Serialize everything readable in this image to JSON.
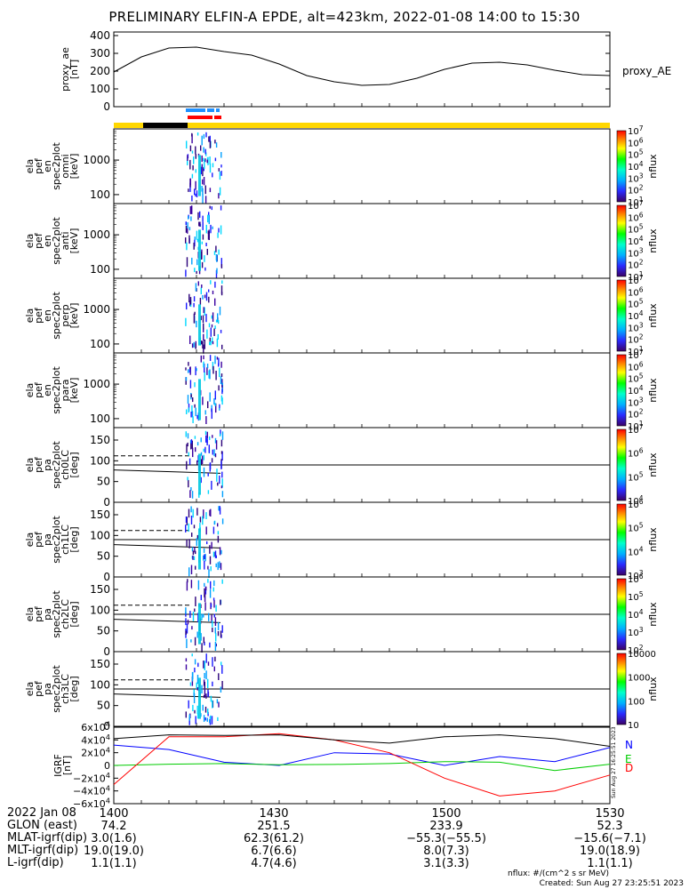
{
  "title": "PRELIMINARY ELFIN-A EPDE, alt=423km, 2022-01-08 14:00 to 15:30",
  "colors": {
    "trace": "#000000",
    "grf_n": "#0000ff",
    "grf_e": "#00cc00",
    "grf_d": "#ff0000",
    "bar_yellow": "#ffd700",
    "bar_black": "#000000",
    "bar_blue": "#1e90ff",
    "bar_red": "#ff0000"
  },
  "chart_data": [
    {
      "type": "line",
      "panel": "proxy_ae",
      "ylabel": [
        "proxy_ae",
        "[nT]"
      ],
      "series_label": "proxy_AE",
      "ylim": [
        0,
        420
      ],
      "yticks": [
        "0",
        "100",
        "200",
        "300",
        "400"
      ],
      "x_minutes": [
        0,
        5,
        10,
        15,
        20,
        25,
        30,
        35,
        40,
        45,
        50,
        55,
        60,
        65,
        70,
        75,
        80,
        85,
        90
      ],
      "values": [
        195,
        280,
        330,
        335,
        310,
        290,
        240,
        175,
        140,
        120,
        125,
        160,
        210,
        245,
        250,
        235,
        205,
        180,
        175
      ]
    },
    {
      "type": "heatmap",
      "panel": "spec2plot_omni",
      "ylabel": [
        "ela",
        "pef",
        "en",
        "spec2plot",
        "omni",
        "[keV]"
      ],
      "yticks": [
        "100",
        "1000"
      ],
      "colorbar_label": "nflux",
      "colorbar_ticks": [
        "10^1",
        "10^2",
        "10^3",
        "10^4",
        "10^5",
        "10^6",
        "10^7"
      ]
    },
    {
      "type": "heatmap",
      "panel": "spec2plot_anti",
      "ylabel": [
        "ela",
        "pef",
        "en",
        "spec2plot",
        "anti",
        "[keV]"
      ],
      "yticks": [
        "100",
        "1000"
      ],
      "colorbar_label": "nflux",
      "colorbar_ticks": [
        "10^1",
        "10^2",
        "10^3",
        "10^4",
        "10^5",
        "10^6",
        "10^7"
      ]
    },
    {
      "type": "heatmap",
      "panel": "spec2plot_perp",
      "ylabel": [
        "ela",
        "pef",
        "en",
        "spec2plot",
        "perp",
        "[keV]"
      ],
      "yticks": [
        "100",
        "1000"
      ],
      "colorbar_label": "nflux",
      "colorbar_ticks": [
        "10^1",
        "10^2",
        "10^3",
        "10^4",
        "10^5",
        "10^6",
        "10^7"
      ]
    },
    {
      "type": "heatmap",
      "panel": "spec2plot_para",
      "ylabel": [
        "ela",
        "pef",
        "en",
        "spec2plot",
        "para",
        "[keV]"
      ],
      "yticks": [
        "100",
        "1000"
      ],
      "colorbar_label": "nflux",
      "colorbar_ticks": [
        "10^1",
        "10^2",
        "10^3",
        "10^4",
        "10^5",
        "10^6",
        "10^7"
      ]
    },
    {
      "type": "heatmap",
      "panel": "spec2plot_ch0LC",
      "ylabel": [
        "ela",
        "pef",
        "pa",
        "spec2plot",
        "ch0LC",
        "[deg]"
      ],
      "yticks": [
        "0",
        "50",
        "100",
        "150"
      ],
      "colorbar_label": "nflux",
      "colorbar_ticks": [
        "10^4",
        "10^5",
        "10^6",
        "10^7"
      ]
    },
    {
      "type": "heatmap",
      "panel": "spec2plot_ch1LC",
      "ylabel": [
        "ela",
        "pef",
        "pa",
        "spec2plot",
        "ch1LC",
        "[deg]"
      ],
      "yticks": [
        "0",
        "50",
        "100",
        "150"
      ],
      "colorbar_label": "nflux",
      "colorbar_ticks": [
        "10^3",
        "10^4",
        "10^5",
        "10^6"
      ]
    },
    {
      "type": "heatmap",
      "panel": "spec2plot_ch2LC",
      "ylabel": [
        "ela",
        "pef",
        "pa",
        "spec2plot",
        "ch2LC",
        "[deg]"
      ],
      "yticks": [
        "0",
        "50",
        "100",
        "150"
      ],
      "colorbar_label": "nflux",
      "colorbar_ticks": [
        "10^2",
        "10^3",
        "10^4",
        "10^5",
        "10^6"
      ]
    },
    {
      "type": "heatmap",
      "panel": "spec2plot_ch3LC",
      "ylabel": [
        "ela",
        "pef",
        "pa",
        "spec2plot",
        "ch3LC",
        "[deg]"
      ],
      "yticks": [
        "0",
        "50",
        "100",
        "150"
      ],
      "colorbar_label": "nflux",
      "colorbar_ticks": [
        "10",
        "100",
        "1000",
        "10000"
      ]
    },
    {
      "type": "line",
      "panel": "GRF",
      "ylabel": [
        "IGRF",
        "[nT]"
      ],
      "yticks": [
        "-6x10^4",
        "-4x10^4",
        "-2x10^4",
        "0",
        "2x10^4",
        "4x10^4",
        "6x10^4"
      ],
      "ylim": [
        -60000,
        60000
      ],
      "x_minutes": [
        0,
        10,
        20,
        30,
        40,
        50,
        60,
        70,
        80,
        90
      ],
      "series": [
        {
          "name": "N",
          "values": [
            32000,
            25000,
            5000,
            0,
            20000,
            18000,
            0,
            14000,
            6000,
            28000
          ]
        },
        {
          "name": "E",
          "values": [
            0,
            2000,
            3000,
            1000,
            1500,
            3000,
            6000,
            5000,
            -8000,
            2000
          ]
        },
        {
          "name": "D",
          "values": [
            -30000,
            45000,
            45000,
            50000,
            40000,
            20000,
            -20000,
            -48000,
            -40000,
            -15000
          ]
        },
        {
          "name": "",
          "values": [
            42000,
            48000,
            47000,
            48000,
            40000,
            35000,
            45000,
            48000,
            42000,
            30000
          ]
        }
      ]
    }
  ],
  "footer": {
    "rows": [
      {
        "label": "2022 Jan 08",
        "values": [
          "1400",
          "1430",
          "1500",
          "1530"
        ]
      },
      {
        "label": "GLON (east)",
        "values": [
          "74.2",
          "251.5",
          "233.9",
          "52.3"
        ]
      },
      {
        "label": "MLAT-igrf(dip)",
        "values": [
          "3.0(1.6)",
          "62.3(61.2)",
          "−55.3(−55.5)",
          "−15.6(−7.1)"
        ]
      },
      {
        "label": "MLT-igrf(dip)",
        "values": [
          "19.0(19.0)",
          "6.7(6.6)",
          "8.0(7.3)",
          "19.0(18.9)"
        ]
      },
      {
        "label": "L-igrf(dip)",
        "values": [
          "1.1(1.1)",
          "4.7(4.6)",
          "3.1(3.3)",
          "1.1(1.1)"
        ]
      }
    ],
    "units": "nflux: #/(cm^2 s sr MeV)",
    "created": "Created: Sun Aug 27 23:25:51 2023",
    "stamp": "Sun Aug 27 16:25:51 2023"
  }
}
